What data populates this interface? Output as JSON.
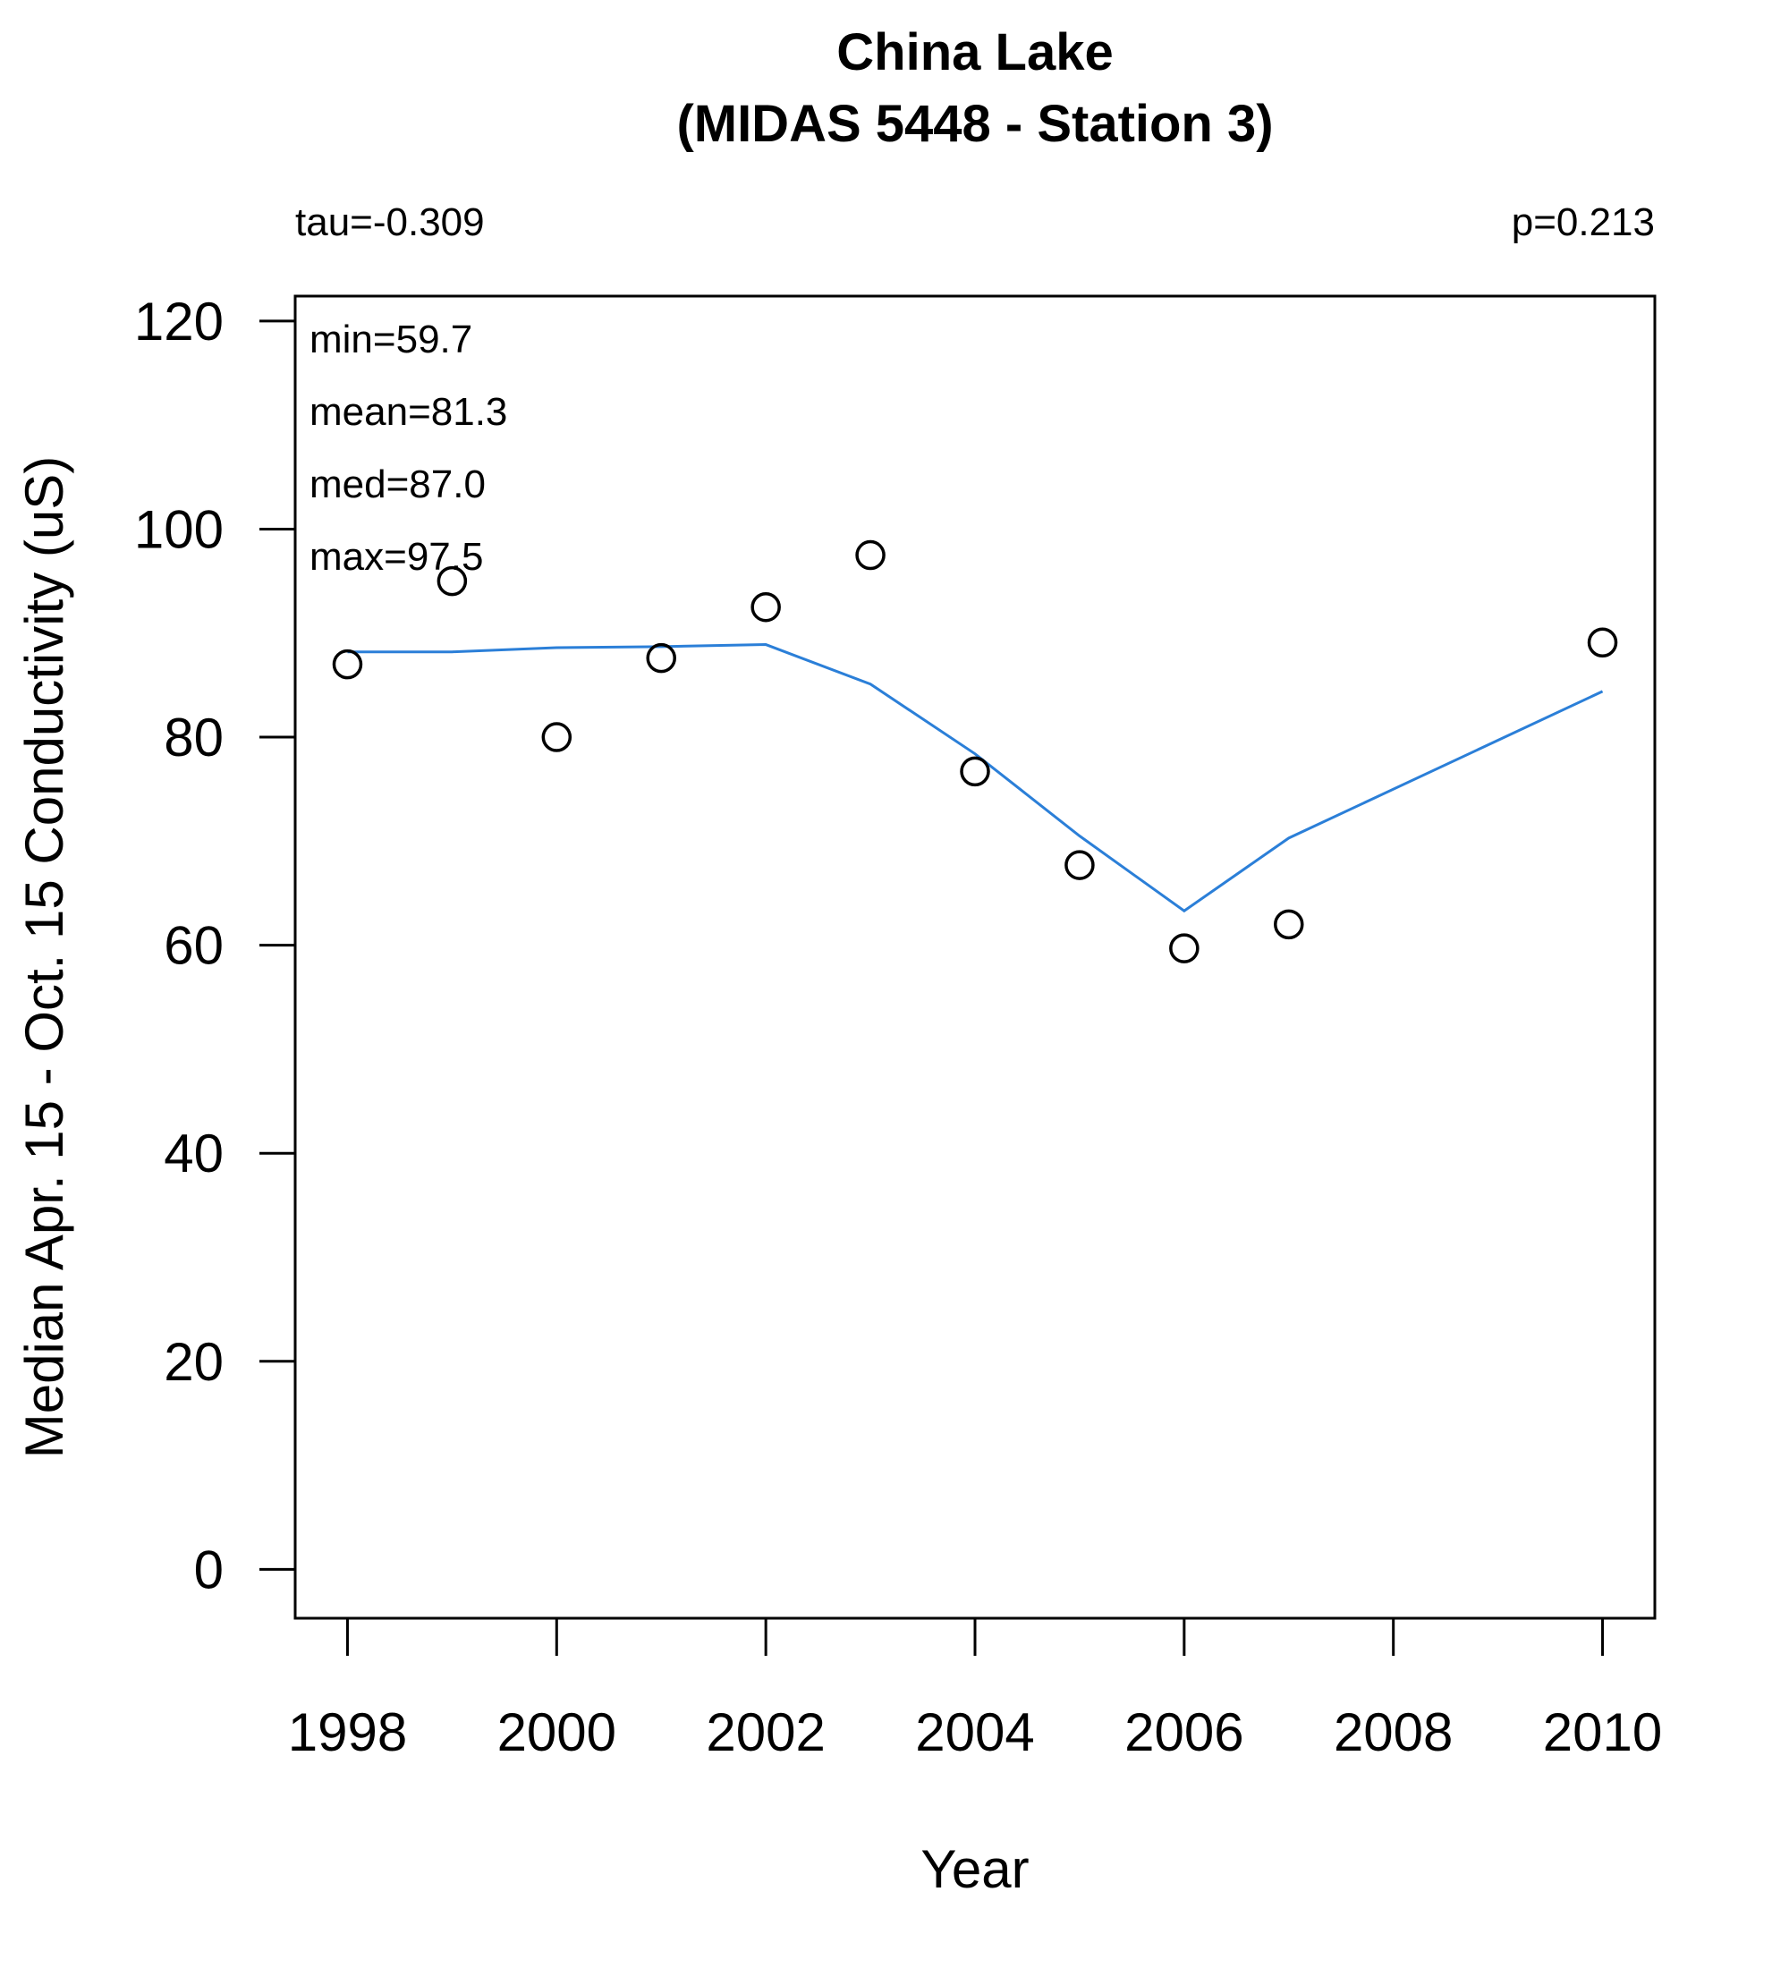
{
  "chart_data": {
    "type": "scatter",
    "title": [
      "China Lake",
      "(MIDAS 5448 - Station 3)"
    ],
    "xlabel": "Year",
    "ylabel": "Median Apr. 15 - Oct. 15 Conductivity (uS)",
    "xlim": [
      1997.5,
      2010.5
    ],
    "ylim": [
      -4.7,
      122.4
    ],
    "x_ticks": [
      1998,
      2000,
      2002,
      2004,
      2006,
      2008,
      2010
    ],
    "y_ticks": [
      0,
      20,
      40,
      60,
      80,
      100,
      120
    ],
    "grid": false,
    "stats": {
      "tau": "tau=-0.309",
      "p": "p=0.213",
      "min": "min=59.7",
      "mean": "mean=81.3",
      "med": "med=87.0",
      "max": "max=97.5"
    },
    "series": [
      {
        "marker": "open-circle",
        "x": [
          1998,
          1999,
          2000,
          2001,
          2002,
          2003,
          2004,
          2005,
          2006,
          2007,
          2010
        ],
        "y": [
          87.0,
          95.0,
          80.0,
          87.6,
          92.5,
          97.5,
          76.7,
          67.7,
          59.7,
          62.0,
          89.1
        ]
      },
      {
        "marker": "line",
        "color": "#2b7fd8",
        "x": [
          1998,
          1999,
          2000,
          2001,
          2002,
          2003,
          2004,
          2005,
          2006,
          2007,
          2010
        ],
        "y": [
          88.2,
          88.2,
          88.6,
          88.7,
          88.9,
          85.1,
          78.4,
          70.5,
          63.3,
          70.3,
          84.4
        ]
      }
    ]
  }
}
